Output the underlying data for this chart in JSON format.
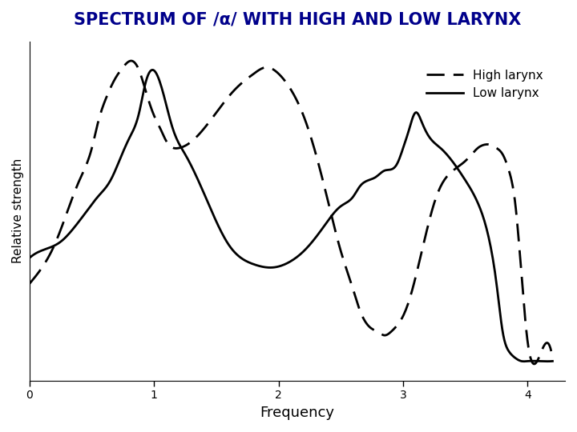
{
  "title": "SPECTRUM OF /α/ WITH HIGH AND LOW LARYNX",
  "xlabel": "Frequency",
  "ylabel": "Relative strength",
  "xlim": [
    0,
    4.3
  ],
  "ylim": [
    0,
    1.05
  ],
  "xticks": [
    0,
    1,
    2,
    3,
    4
  ],
  "title_color": "#00008B",
  "title_fontsize": 15,
  "low_larynx_x": [
    0,
    0.15,
    0.25,
    0.35,
    0.45,
    0.55,
    0.65,
    0.72,
    0.8,
    0.88,
    0.93,
    1.0,
    1.08,
    1.15,
    1.25,
    1.4,
    1.6,
    1.8,
    1.95,
    2.1,
    2.2,
    2.35,
    2.5,
    2.6,
    2.65,
    2.72,
    2.78,
    2.85,
    2.95,
    3.0,
    3.05,
    3.1,
    3.15,
    3.2,
    3.3,
    3.5,
    3.6,
    3.7,
    3.75,
    3.8,
    3.85,
    3.9,
    3.95,
    4.0,
    4.1,
    4.2
  ],
  "low_larynx_y": [
    0.38,
    0.41,
    0.43,
    0.47,
    0.52,
    0.57,
    0.62,
    0.68,
    0.75,
    0.83,
    0.92,
    0.96,
    0.88,
    0.78,
    0.7,
    0.58,
    0.42,
    0.36,
    0.35,
    0.37,
    0.4,
    0.47,
    0.54,
    0.57,
    0.6,
    0.62,
    0.63,
    0.65,
    0.67,
    0.72,
    0.78,
    0.83,
    0.8,
    0.76,
    0.72,
    0.62,
    0.55,
    0.42,
    0.3,
    0.15,
    0.09,
    0.07,
    0.06,
    0.06,
    0.06,
    0.06
  ],
  "high_larynx_x": [
    0,
    0.1,
    0.2,
    0.3,
    0.4,
    0.5,
    0.55,
    0.62,
    0.68,
    0.75,
    0.82,
    0.88,
    0.93,
    1.0,
    1.05,
    1.1,
    1.2,
    1.3,
    1.4,
    1.5,
    1.6,
    1.7,
    1.8,
    1.9,
    2.0,
    2.1,
    2.2,
    2.3,
    2.4,
    2.5,
    2.6,
    2.65,
    2.7,
    2.75,
    2.8,
    2.85,
    2.9,
    2.95,
    3.0,
    3.05,
    3.1,
    3.15,
    3.2,
    3.25,
    3.3,
    3.4,
    3.5,
    3.55,
    3.6,
    3.65,
    3.7,
    3.75,
    3.8,
    3.85,
    3.9,
    4.0,
    4.1,
    4.2
  ],
  "high_larynx_y": [
    0.3,
    0.35,
    0.42,
    0.52,
    0.62,
    0.72,
    0.8,
    0.88,
    0.93,
    0.97,
    0.99,
    0.96,
    0.9,
    0.82,
    0.78,
    0.74,
    0.72,
    0.74,
    0.78,
    0.83,
    0.88,
    0.92,
    0.95,
    0.97,
    0.95,
    0.9,
    0.82,
    0.7,
    0.55,
    0.4,
    0.28,
    0.22,
    0.18,
    0.16,
    0.15,
    0.14,
    0.15,
    0.17,
    0.2,
    0.25,
    0.32,
    0.4,
    0.48,
    0.55,
    0.6,
    0.65,
    0.68,
    0.7,
    0.72,
    0.73,
    0.73,
    0.72,
    0.7,
    0.65,
    0.55,
    0.12,
    0.08,
    0.07
  ],
  "background_color": "#ffffff",
  "line_color": "#000000"
}
